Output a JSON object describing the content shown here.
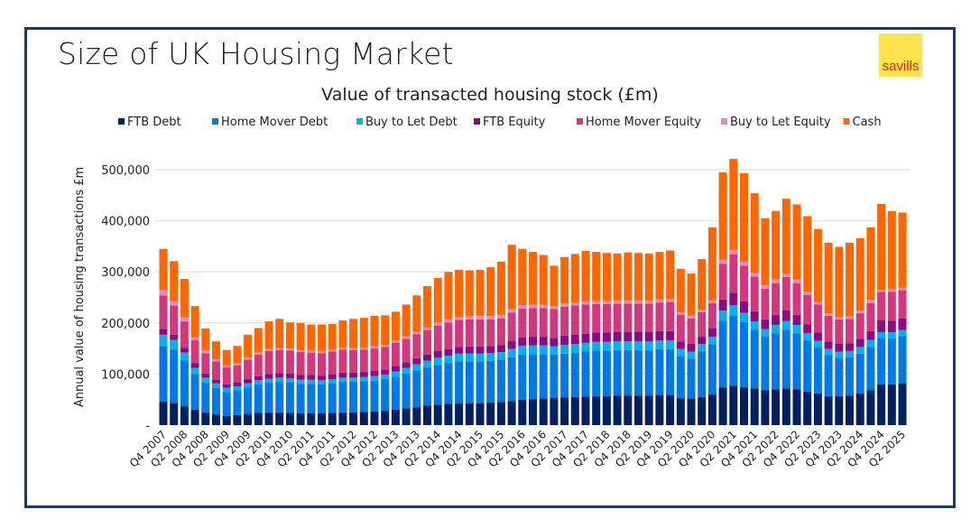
{
  "header": {
    "title": "Size of UK Housing Market",
    "logo_text": "savills"
  },
  "chart_data": {
    "type": "bar",
    "stacked": true,
    "title": "Value of transacted housing stock (£m)",
    "xlabel": "",
    "ylabel": "Annual value of housing transactions £m",
    "ylim": [
      0,
      550000
    ],
    "yticks": [
      0,
      100000,
      200000,
      300000,
      400000,
      500000
    ],
    "ytick_labels": [
      "-",
      "100,000",
      "200,000",
      "300,000",
      "400,000",
      "500,000"
    ],
    "grid": true,
    "legend_position": "top",
    "units_scale": 1000,
    "start_quarter": "Q4 2007",
    "tick_labels": [
      "Q4 2007",
      "Q2 2008",
      "Q4 2008",
      "Q2 2009",
      "Q4 2009",
      "Q2 2010",
      "Q4 2010",
      "Q2 2011",
      "Q4 2011",
      "Q2 2012",
      "Q4 2012",
      "Q2 2013",
      "Q4 2013",
      "Q2 2014",
      "Q4 2014",
      "Q2 2015",
      "Q4 2015",
      "Q2 2016",
      "Q4 2016",
      "Q2 2017",
      "Q4 2017",
      "Q2 2018",
      "Q4 2018",
      "Q2 2019",
      "Q4 2019",
      "Q2 2020",
      "Q4 2020",
      "Q2 2021",
      "Q4 2021",
      "Q2 2022",
      "Q4 2022",
      "Q2 2023",
      "Q4 2023",
      "Q2 2024",
      "Q4 2024",
      "Q2 2025"
    ],
    "series": [
      {
        "name": "FTB Debt",
        "color": "#002060",
        "values": [
          46,
          43,
          37,
          30,
          25,
          21,
          18,
          20,
          22,
          24,
          25,
          25,
          24,
          23,
          23,
          23,
          24,
          25,
          25,
          26,
          27,
          28,
          30,
          33,
          35,
          38,
          40,
          42,
          43,
          43,
          43,
          44,
          45,
          47,
          50,
          51,
          52,
          53,
          54,
          55,
          56,
          57,
          57,
          58,
          58,
          58,
          58,
          59,
          59,
          53,
          52,
          55,
          60,
          74,
          77,
          74,
          72,
          68,
          70,
          72,
          70,
          66,
          62,
          57,
          57,
          58,
          62,
          68,
          80,
          80,
          82
        ]
      },
      {
        "name": "Home Mover Debt",
        "color": "#0078e6",
        "values": [
          109,
          105,
          90,
          70,
          58,
          52,
          47,
          48,
          52,
          56,
          58,
          60,
          60,
          58,
          58,
          57,
          58,
          60,
          60,
          60,
          60,
          62,
          65,
          68,
          72,
          75,
          78,
          80,
          82,
          82,
          82,
          82,
          83,
          86,
          88,
          88,
          87,
          85,
          86,
          87,
          88,
          89,
          89,
          89,
          89,
          89,
          89,
          90,
          90,
          82,
          78,
          90,
          98,
          130,
          138,
          128,
          115,
          105,
          110,
          115,
          110,
          100,
          90,
          80,
          75,
          75,
          78,
          85,
          91,
          90,
          92
        ]
      },
      {
        "name": "Buy to Let Debt",
        "color": "#00b0f0",
        "values": [
          22,
          19,
          15,
          12,
          10,
          9,
          8,
          8,
          8,
          8,
          8,
          8,
          8,
          8,
          8,
          8,
          8,
          8,
          8,
          8,
          9,
          9,
          10,
          11,
          12,
          13,
          14,
          14,
          15,
          15,
          15,
          15,
          15,
          16,
          17,
          17,
          17,
          16,
          17,
          17,
          17,
          17,
          17,
          17,
          17,
          17,
          17,
          17,
          17,
          14,
          14,
          14,
          15,
          20,
          20,
          18,
          16,
          15,
          16,
          17,
          16,
          14,
          13,
          12,
          12,
          12,
          13,
          14,
          11,
          12,
          12
        ]
      },
      {
        "name": "FTB Equity",
        "color": "#8e0a82",
        "values": [
          11,
          10,
          9,
          9,
          8,
          7,
          7,
          7,
          8,
          8,
          9,
          9,
          9,
          9,
          9,
          9,
          9,
          10,
          10,
          10,
          10,
          10,
          11,
          11,
          12,
          12,
          13,
          13,
          13,
          14,
          14,
          14,
          14,
          16,
          17,
          17,
          17,
          17,
          18,
          18,
          18,
          18,
          18,
          18,
          18,
          18,
          18,
          18,
          18,
          15,
          15,
          14,
          16,
          22,
          24,
          22,
          20,
          19,
          20,
          21,
          20,
          17,
          16,
          15,
          15,
          15,
          16,
          17,
          23,
          22,
          23
        ]
      },
      {
        "name": "Home Mover Equity",
        "color": "#d3387c",
        "values": [
          66,
          57,
          52,
          45,
          40,
          36,
          33,
          34,
          38,
          42,
          45,
          45,
          45,
          45,
          44,
          44,
          45,
          45,
          44,
          44,
          44,
          44,
          45,
          46,
          47,
          48,
          50,
          52,
          53,
          53,
          53,
          52,
          52,
          55,
          56,
          56,
          56,
          56,
          57,
          57,
          57,
          56,
          56,
          56,
          56,
          56,
          56,
          56,
          57,
          52,
          50,
          48,
          50,
          70,
          75,
          70,
          68,
          60,
          62,
          65,
          62,
          58,
          55,
          50,
          48,
          48,
          50,
          55,
          56,
          57,
          55
        ]
      },
      {
        "name": "Buy to Let Equity",
        "color": "#e68ab8",
        "values": [
          10,
          9,
          8,
          6,
          5,
          4,
          4,
          4,
          4,
          4,
          4,
          4,
          4,
          4,
          4,
          4,
          4,
          4,
          4,
          4,
          4,
          4,
          5,
          5,
          5,
          5,
          6,
          6,
          6,
          6,
          7,
          7,
          7,
          7,
          7,
          7,
          7,
          6,
          6,
          6,
          6,
          6,
          6,
          6,
          6,
          6,
          6,
          6,
          6,
          5,
          5,
          5,
          5,
          8,
          9,
          8,
          7,
          7,
          7,
          7,
          7,
          6,
          5,
          5,
          5,
          5,
          5,
          6,
          4,
          5,
          5
        ]
      },
      {
        "name": "Cash",
        "color": "#ff6600",
        "values": [
          81,
          78,
          75,
          61,
          43,
          35,
          30,
          34,
          45,
          48,
          54,
          57,
          51,
          53,
          51,
          52,
          50,
          53,
          57,
          58,
          60,
          58,
          56,
          62,
          71,
          81,
          87,
          93,
          92,
          90,
          90,
          95,
          104,
          126,
          110,
          103,
          97,
          79,
          91,
          95,
          99,
          96,
          94,
          92,
          94,
          93,
          92,
          93,
          95,
          85,
          83,
          99,
          143,
          171,
          178,
          173,
          156,
          131,
          134,
          146,
          147,
          148,
          143,
          138,
          137,
          144,
          142,
          142,
          168,
          153,
          147
        ]
      }
    ]
  }
}
